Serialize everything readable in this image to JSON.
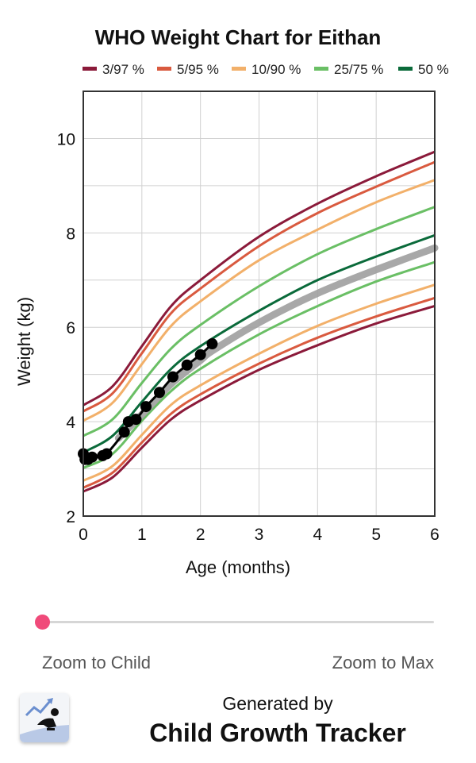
{
  "chart_data": {
    "type": "line",
    "title": "WHO Weight Chart for Eithan",
    "xlabel": "Age (months)",
    "ylabel": "Weight (kg)",
    "xlim": [
      0,
      6
    ],
    "ylim": [
      2,
      11
    ],
    "xticks": [
      0,
      1,
      2,
      3,
      4,
      5,
      6
    ],
    "yticks": [
      2,
      4,
      6,
      8,
      10
    ],
    "grid": true,
    "legend": {
      "position": "top",
      "entries": [
        {
          "label": "3/97 %",
          "color": "#8b1a3a"
        },
        {
          "label": "5/95 %",
          "color": "#d95a3f"
        },
        {
          "label": "10/90 %",
          "color": "#f2b06a"
        },
        {
          "label": "25/75 %",
          "color": "#6abf65"
        },
        {
          "label": "50 %",
          "color": "#0a6a3a"
        }
      ]
    },
    "x": [
      0,
      0.5,
      1,
      1.5,
      2,
      3,
      4,
      5,
      6
    ],
    "series": [
      {
        "name": "3 %",
        "group": "3/97 %",
        "color": "#8b1a3a",
        "values": [
          2.52,
          2.82,
          3.45,
          4.05,
          4.45,
          5.1,
          5.62,
          6.08,
          6.45
        ]
      },
      {
        "name": "97 %",
        "group": "3/97 %",
        "color": "#8b1a3a",
        "values": [
          4.35,
          4.75,
          5.6,
          6.45,
          7.0,
          7.92,
          8.62,
          9.2,
          9.72
        ]
      },
      {
        "name": "5 %",
        "group": "5/95 %",
        "color": "#d95a3f",
        "values": [
          2.6,
          2.92,
          3.56,
          4.17,
          4.58,
          5.23,
          5.78,
          6.23,
          6.62
        ]
      },
      {
        "name": "95 %",
        "group": "5/95 %",
        "color": "#d95a3f",
        "values": [
          4.22,
          4.6,
          5.45,
          6.3,
          6.82,
          7.72,
          8.42,
          8.98,
          9.5
        ]
      },
      {
        "name": "10 %",
        "group": "10/90 %",
        "color": "#f2b06a",
        "values": [
          2.75,
          3.06,
          3.72,
          4.36,
          4.77,
          5.44,
          6.03,
          6.5,
          6.9
        ]
      },
      {
        "name": "90 %",
        "group": "10/90 %",
        "color": "#f2b06a",
        "values": [
          4.02,
          4.4,
          5.22,
          6.03,
          6.55,
          7.42,
          8.07,
          8.65,
          9.12
        ]
      },
      {
        "name": "25 %",
        "group": "25/75 %",
        "color": "#6abf65",
        "values": [
          3.02,
          3.32,
          4.02,
          4.65,
          5.12,
          5.85,
          6.45,
          6.97,
          7.38
        ]
      },
      {
        "name": "75 %",
        "group": "25/75 %",
        "color": "#6abf65",
        "values": [
          3.7,
          4.05,
          4.82,
          5.55,
          6.05,
          6.87,
          7.55,
          8.08,
          8.55
        ]
      },
      {
        "name": "50 %",
        "group": "50 %",
        "color": "#0a6a3a",
        "values": [
          3.35,
          3.7,
          4.42,
          5.12,
          5.6,
          6.35,
          7.0,
          7.5,
          7.95
        ]
      },
      {
        "name": "Child trend",
        "color": "#9e9e9e",
        "x": [
          0.6,
          1,
          1.5,
          2,
          2.2,
          3,
          4,
          5,
          6
        ],
        "values": [
          3.65,
          4.15,
          4.8,
          5.3,
          5.5,
          6.1,
          6.72,
          7.22,
          7.68
        ]
      },
      {
        "name": "Eithan",
        "color": "#000000",
        "x": [
          0,
          0.03,
          0.08,
          0.15,
          0.33,
          0.4,
          0.7,
          0.77,
          0.9,
          1.07,
          1.3,
          1.53,
          1.77,
          2.0,
          2.2
        ],
        "values": [
          3.32,
          3.2,
          3.2,
          3.25,
          3.28,
          3.32,
          3.78,
          4.0,
          4.05,
          4.32,
          4.62,
          4.95,
          5.2,
          5.42,
          5.65
        ]
      }
    ]
  },
  "slider": {
    "left_label": "Zoom to Child",
    "right_label": "Zoom to Max"
  },
  "footer": {
    "generated_by": "Generated by",
    "app_name": "Child Growth Tracker"
  }
}
